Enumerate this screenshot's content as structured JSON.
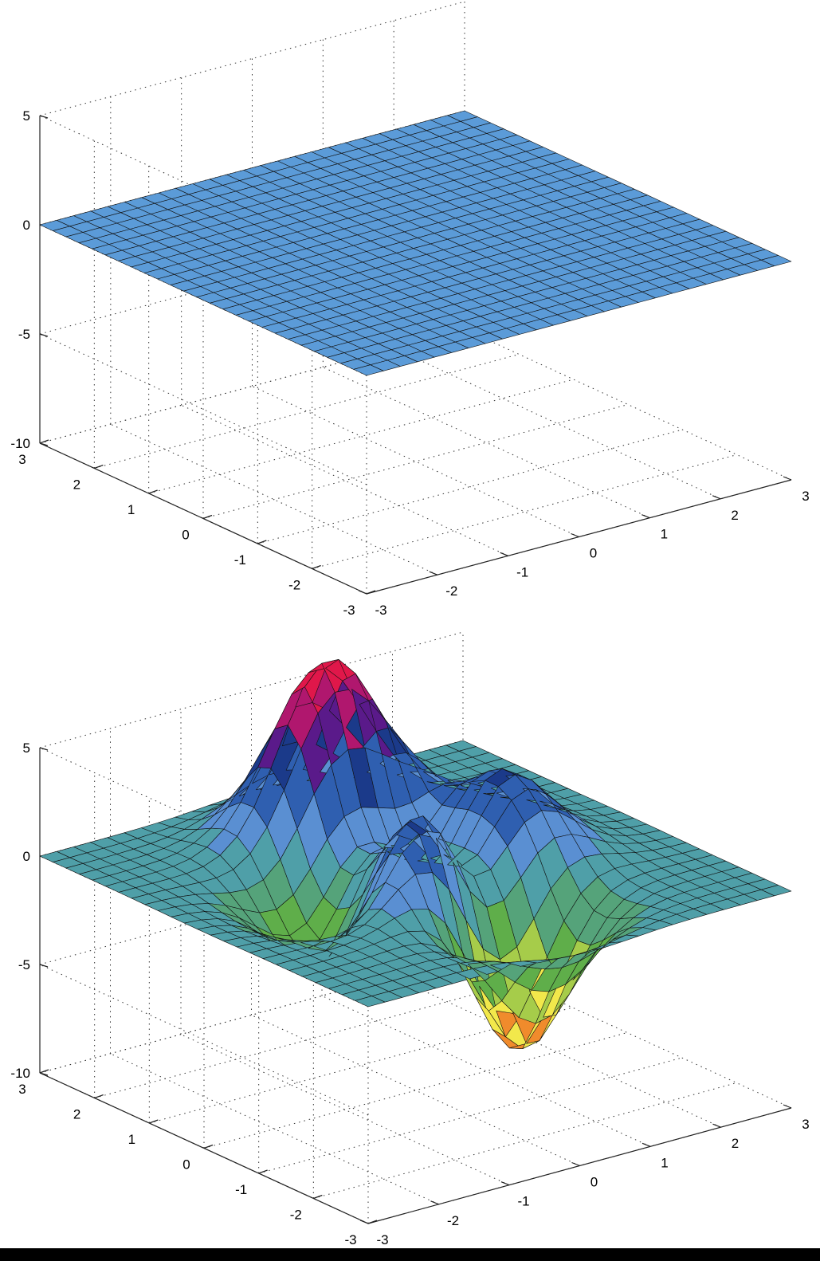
{
  "chart_data": [
    {
      "type": "surface",
      "title": "",
      "xlabel": "",
      "ylabel": "",
      "zlabel": "",
      "xlim": [
        -3,
        3
      ],
      "ylim": [
        -3,
        3
      ],
      "zlim": [
        -10,
        5
      ],
      "x_ticks": [
        "-3",
        "-2",
        "-1",
        "0",
        "1",
        "2",
        "3"
      ],
      "y_ticks": [
        "-3",
        "-2",
        "-1",
        "0",
        "1",
        "2",
        "3"
      ],
      "z_ticks": [
        "-10",
        "-5",
        "0",
        "5"
      ],
      "grid": true,
      "grid_size": 25,
      "function": "flat",
      "z_value": 0,
      "face_color": "#5b9bd8",
      "edge_color": "#111111"
    },
    {
      "type": "surface",
      "title": "",
      "xlabel": "",
      "ylabel": "",
      "zlabel": "",
      "xlim": [
        -3,
        3
      ],
      "ylim": [
        -3,
        3
      ],
      "zlim": [
        -10,
        5
      ],
      "x_ticks": [
        "-3",
        "-2",
        "-1",
        "0",
        "1",
        "2",
        "3"
      ],
      "y_ticks": [
        "-3",
        "-2",
        "-1",
        "0",
        "1",
        "2",
        "3"
      ],
      "z_ticks": [
        "-10",
        "-5",
        "0",
        "5"
      ],
      "grid": true,
      "grid_size": 25,
      "function": "peaks",
      "z_range": [
        -6.55,
        8.1
      ],
      "edge_color": "#111111",
      "colormap": [
        "#f08b2c",
        "#f2e84b",
        "#a6cc4a",
        "#5fae4a",
        "#55a37a",
        "#4f9fa8",
        "#5a8fd2",
        "#2f5fb0",
        "#1b3a8a",
        "#5a1a8a",
        "#b0176e",
        "#e0174a"
      ]
    }
  ]
}
